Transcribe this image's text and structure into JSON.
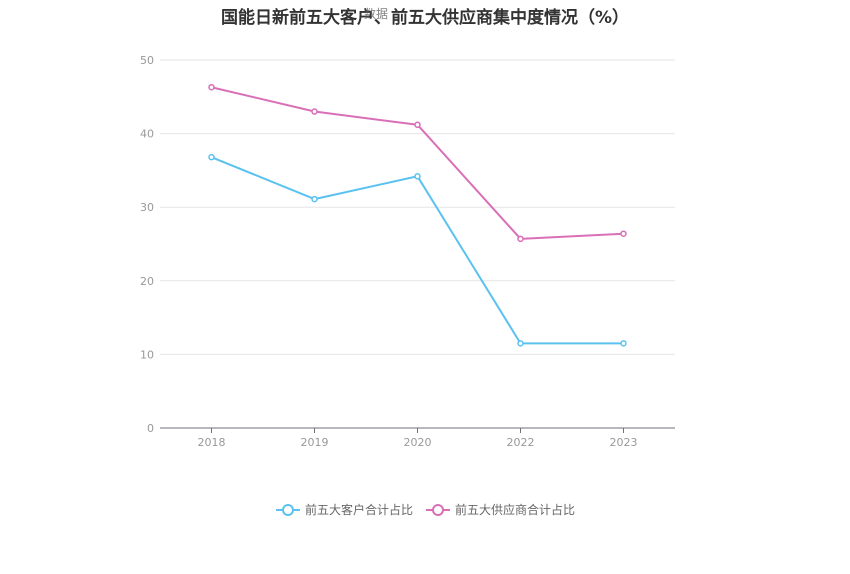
{
  "chart_data": {
    "type": "line",
    "title": "国能日新前五大客户、前五大供应商集中度情况（%）",
    "watermark": "数据",
    "categories": [
      "2018",
      "2019",
      "2020",
      "2022",
      "2023"
    ],
    "ylim": [
      0,
      50
    ],
    "yticks": [
      "0",
      "10",
      "20",
      "30",
      "40",
      "50"
    ],
    "grid": true,
    "legend_position": "bottom",
    "series": [
      {
        "name": "前五大客户合计占比",
        "color": "#5bc2f0",
        "values": [
          36.8,
          31.1,
          34.2,
          11.5,
          11.5
        ]
      },
      {
        "name": "前五大供应商合计占比",
        "color": "#d96fb7",
        "values": [
          46.3,
          43.0,
          41.2,
          25.7,
          26.4
        ]
      }
    ]
  }
}
